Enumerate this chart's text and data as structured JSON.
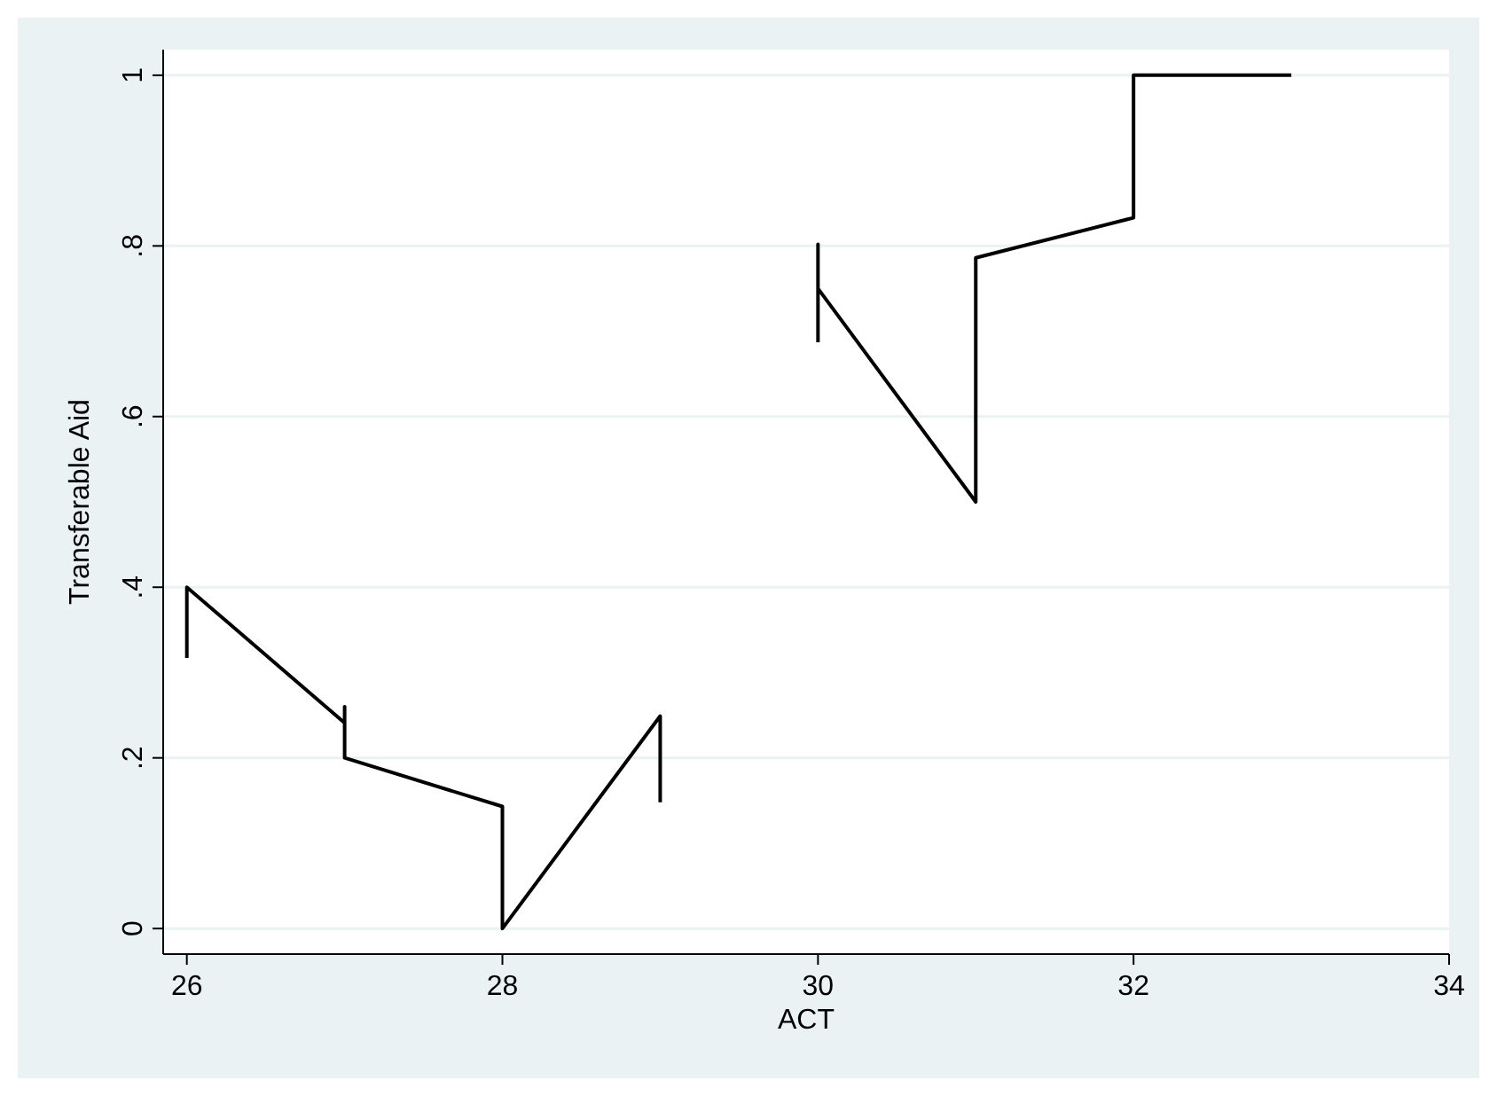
{
  "chart_data": {
    "type": "line",
    "xlabel": "ACT",
    "ylabel": "Transferable Aid",
    "x": [
      26,
      26,
      27,
      27,
      27,
      28,
      28,
      29,
      29,
      29.5,
      30,
      30,
      30,
      31,
      31,
      32,
      32,
      33
    ],
    "series": [
      {
        "color": "#000000",
        "values": [
          0.317,
          0.4,
          0.241,
          0.26,
          0.2,
          0.143,
          0,
          0.249,
          0.148,
          null,
          0.687,
          0.802,
          0.75,
          0.5,
          0.786,
          0.833,
          1,
          1
        ]
      }
    ],
    "xlim": [
      25.85,
      34
    ],
    "xticks": [
      26,
      28,
      30,
      32,
      34
    ],
    "ylim": [
      -0.03,
      1.03
    ],
    "yticks": [
      {
        "value": 0,
        "label": "0"
      },
      {
        "value": 0.2,
        "label": ".2"
      },
      {
        "value": 0.4,
        "label": ".4"
      },
      {
        "value": 0.6,
        "label": ".6"
      },
      {
        "value": 0.8,
        "label": ".8"
      },
      {
        "value": 1,
        "label": "1"
      }
    ],
    "grid": "y",
    "marker": "none",
    "line_style": "solid"
  }
}
